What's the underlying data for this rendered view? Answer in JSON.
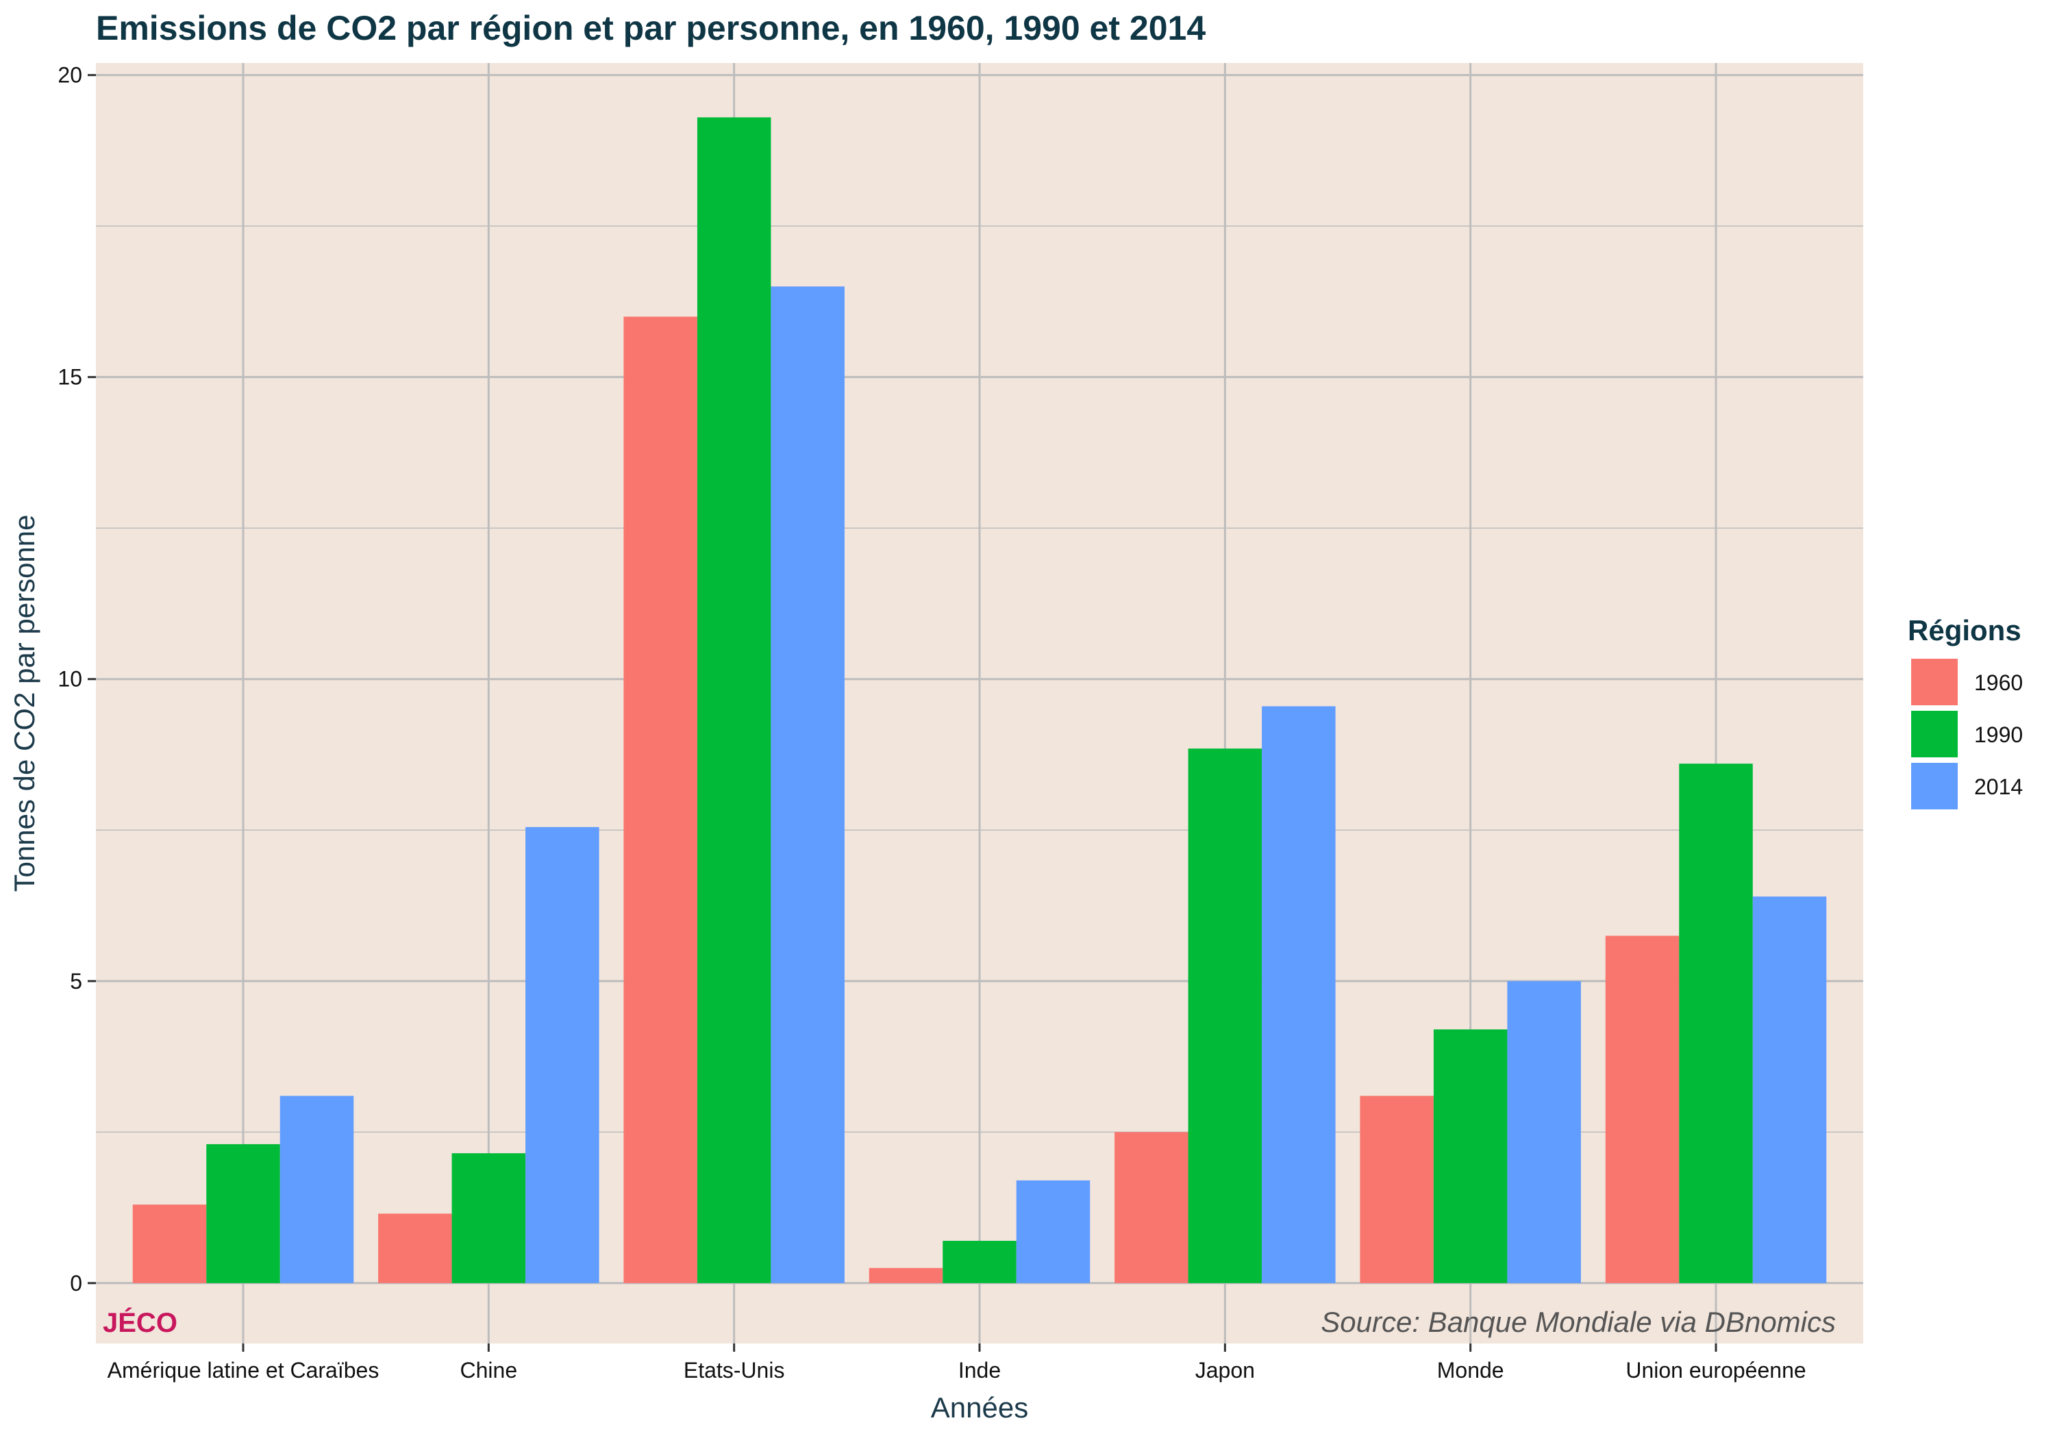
{
  "chart_data": {
    "type": "bar",
    "title": "Emissions de CO2 par région et par personne, en 1960, 1990 et 2014",
    "xlabel": "Années",
    "ylabel": "Tonnes de CO2 par personne",
    "ylim": [
      -1,
      20.2
    ],
    "yticks": [
      "0",
      "5",
      "10",
      "15",
      "20"
    ],
    "grid": true,
    "legend_position": "right",
    "legend_title": "Régions",
    "categories": [
      "Amérique latine et Caraïbes",
      "Chine",
      "Etats-Unis",
      "Inde",
      "Japon",
      "Monde",
      "Union européenne"
    ],
    "series": [
      {
        "name": "1960",
        "color": "#F8766D",
        "values": [
          1.3,
          1.15,
          16.0,
          0.25,
          2.5,
          3.1,
          5.75
        ]
      },
      {
        "name": "1990",
        "color": "#00BA38",
        "values": [
          2.3,
          2.15,
          19.3,
          0.7,
          8.85,
          4.2,
          8.6
        ]
      },
      {
        "name": "2014",
        "color": "#619CFF",
        "values": [
          3.1,
          7.55,
          16.5,
          1.7,
          9.55,
          5.0,
          6.4
        ]
      }
    ],
    "panel_color": "#F2E5DC",
    "grid_color": "#BDBDBD"
  },
  "branding": {
    "label": "JÉCO",
    "color": "#C8175D"
  },
  "source": "Source: Banque Mondiale via DBnomics"
}
